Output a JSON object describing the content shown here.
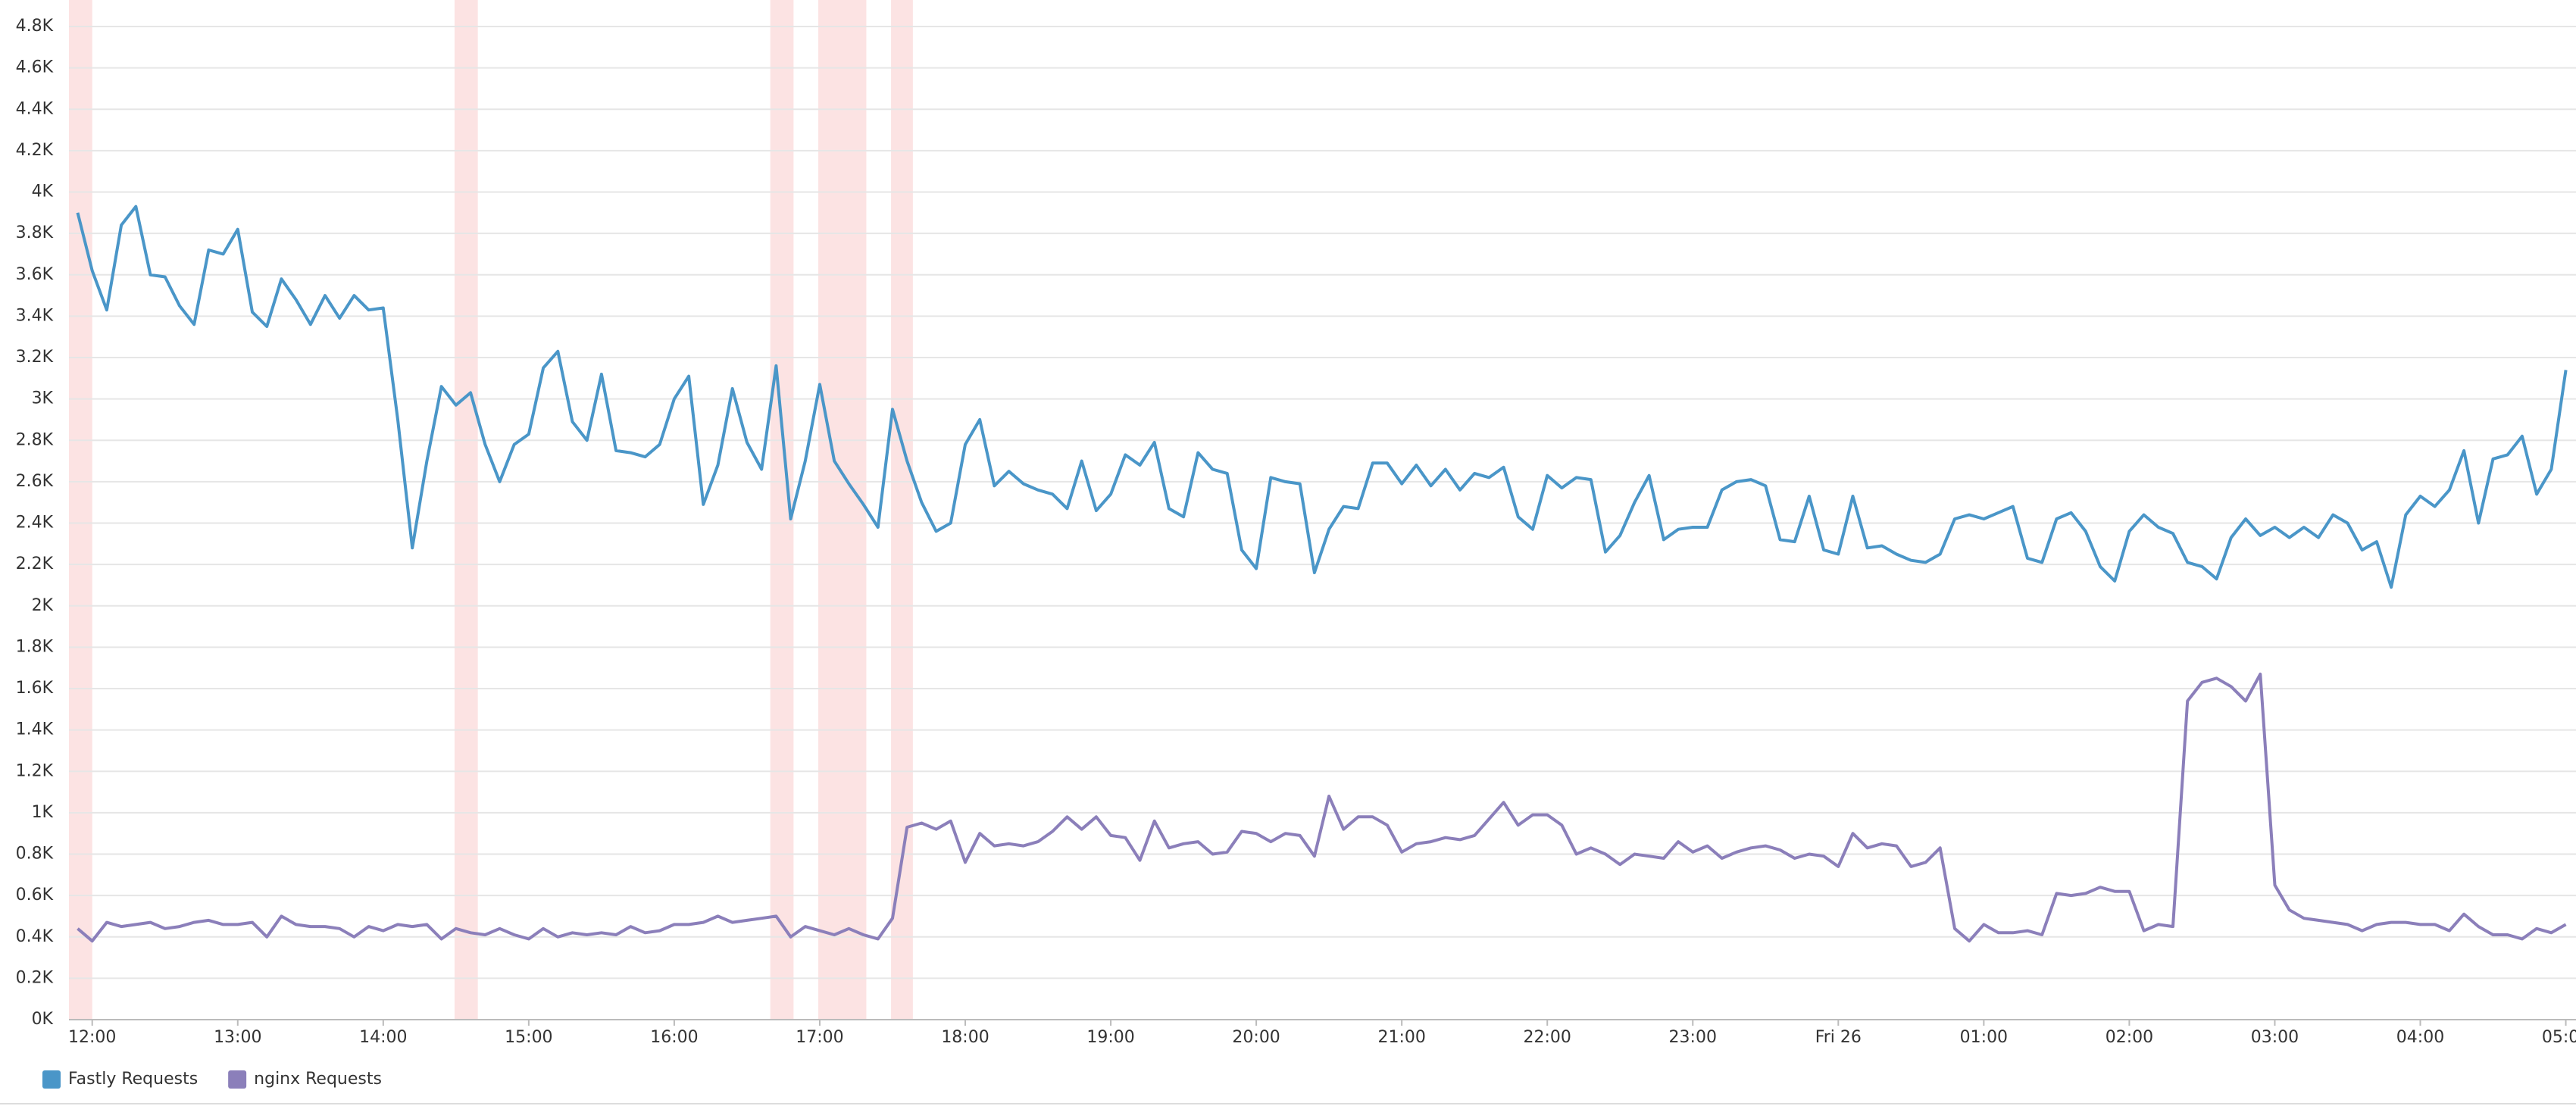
{
  "chart_data": {
    "type": "line",
    "x": [
      11.9,
      12,
      12.1,
      12.2,
      12.3,
      12.4,
      12.5,
      12.6,
      12.7,
      12.8,
      12.9,
      13,
      13.1,
      13.2,
      13.3,
      13.4,
      13.5,
      13.6,
      13.7,
      13.8,
      13.9,
      14,
      14.1,
      14.2,
      14.3,
      14.4,
      14.5,
      14.6,
      14.7,
      14.8,
      14.9,
      15,
      15.1,
      15.2,
      15.3,
      15.4,
      15.5,
      15.6,
      15.7,
      15.8,
      15.9,
      16,
      16.1,
      16.2,
      16.3,
      16.4,
      16.5,
      16.6,
      16.7,
      16.8,
      16.9,
      17,
      17.1,
      17.2,
      17.3,
      17.4,
      17.5,
      17.6,
      17.7,
      17.8,
      17.9,
      18,
      18.1,
      18.2,
      18.3,
      18.4,
      18.5,
      18.6,
      18.7,
      18.8,
      18.9,
      19,
      19.1,
      19.2,
      19.3,
      19.4,
      19.5,
      19.6,
      19.7,
      19.8,
      19.9,
      20,
      20.1,
      20.2,
      20.3,
      20.4,
      20.5,
      20.6,
      20.7,
      20.8,
      20.9,
      21,
      21.1,
      21.2,
      21.3,
      21.4,
      21.5,
      21.6,
      21.7,
      21.8,
      21.9,
      22,
      22.1,
      22.2,
      22.3,
      22.4,
      22.5,
      22.6,
      22.7,
      22.8,
      22.9,
      23,
      23.1,
      23.2,
      23.3,
      23.4,
      23.5,
      23.6,
      23.7,
      23.8,
      23.9,
      24,
      24.1,
      24.2,
      24.3,
      24.4,
      24.5,
      24.6,
      24.7,
      24.8,
      24.9,
      25,
      25.1,
      25.2,
      25.3,
      25.4,
      25.5,
      25.6,
      25.7,
      25.8,
      25.9,
      26,
      26.1,
      26.2,
      26.3,
      26.4,
      26.5,
      26.6,
      26.7,
      26.8,
      26.9,
      27,
      27.1,
      27.2,
      27.3,
      27.4,
      27.5,
      27.6,
      27.7,
      27.8,
      27.9,
      28,
      28.1,
      28.2,
      28.3,
      28.4,
      28.5,
      28.6,
      28.7,
      28.8,
      28.9,
      29
    ],
    "series": [
      {
        "name": "Fastly Requests",
        "color": "#4a96c8",
        "values": [
          3900,
          3620,
          3430,
          3840,
          3930,
          3600,
          3590,
          3450,
          3360,
          3720,
          3700,
          3820,
          3420,
          3350,
          3580,
          3480,
          3360,
          3500,
          3390,
          3500,
          3430,
          3440,
          2900,
          2280,
          2700,
          3060,
          2970,
          3030,
          2780,
          2600,
          2780,
          2830,
          3150,
          3230,
          2890,
          2800,
          3120,
          2750,
          2740,
          2720,
          2780,
          3000,
          3110,
          2490,
          2680,
          3050,
          2790,
          2660,
          3160,
          2420,
          2700,
          3070,
          2700,
          2590,
          2490,
          2380,
          2950,
          2700,
          2500,
          2360,
          2400,
          2780,
          2900,
          2580,
          2650,
          2590,
          2560,
          2540,
          2470,
          2700,
          2460,
          2540,
          2730,
          2680,
          2790,
          2470,
          2430,
          2740,
          2660,
          2640,
          2270,
          2180,
          2620,
          2600,
          2590,
          2160,
          2370,
          2480,
          2470,
          2690,
          2690,
          2590,
          2680,
          2580,
          2660,
          2560,
          2640,
          2620,
          2670,
          2430,
          2370,
          2630,
          2570,
          2620,
          2610,
          2260,
          2340,
          2500,
          2630,
          2320,
          2370,
          2380,
          2380,
          2560,
          2600,
          2610,
          2580,
          2320,
          2310,
          2530,
          2270,
          2250,
          2530,
          2280,
          2290,
          2250,
          2220,
          2210,
          2250,
          2420,
          2440,
          2420,
          2450,
          2480,
          2230,
          2210,
          2420,
          2450,
          2360,
          2190,
          2120,
          2360,
          2440,
          2380,
          2350,
          2210,
          2190,
          2130,
          2330,
          2420,
          2340,
          2380,
          2330,
          2380,
          2330,
          2440,
          2400,
          2270,
          2310,
          2090,
          2440,
          2530,
          2480,
          2560,
          2750,
          2400,
          2710,
          2730,
          2820,
          2540,
          2660,
          3140
        ]
      },
      {
        "name": "nginx Requests",
        "color": "#8b7fba",
        "values": [
          440,
          380,
          470,
          450,
          460,
          470,
          440,
          450,
          470,
          480,
          460,
          460,
          470,
          400,
          500,
          460,
          450,
          450,
          440,
          400,
          450,
          430,
          460,
          450,
          460,
          390,
          440,
          420,
          410,
          440,
          410,
          390,
          440,
          400,
          420,
          410,
          420,
          410,
          450,
          420,
          430,
          460,
          460,
          470,
          500,
          470,
          480,
          490,
          500,
          400,
          450,
          430,
          410,
          440,
          410,
          390,
          490,
          930,
          950,
          920,
          960,
          760,
          900,
          840,
          850,
          840,
          860,
          910,
          980,
          920,
          980,
          890,
          880,
          770,
          960,
          830,
          850,
          860,
          800,
          810,
          910,
          900,
          860,
          900,
          890,
          790,
          1080,
          920,
          980,
          980,
          940,
          810,
          850,
          860,
          880,
          870,
          890,
          970,
          1050,
          940,
          990,
          990,
          940,
          800,
          830,
          800,
          750,
          800,
          790,
          780,
          860,
          810,
          840,
          780,
          810,
          830,
          840,
          820,
          780,
          800,
          790,
          740,
          900,
          830,
          850,
          840,
          740,
          760,
          830,
          440,
          380,
          460,
          420,
          420,
          430,
          410,
          610,
          600,
          610,
          640,
          620,
          620,
          430,
          460,
          450,
          1540,
          1630,
          1650,
          1610,
          1540,
          1670,
          650,
          530,
          490,
          480,
          470,
          460,
          430,
          460,
          470,
          470,
          460,
          460,
          430,
          510,
          450,
          410,
          410,
          390,
          440,
          420,
          460
        ]
      }
    ],
    "xlim": [
      11.84,
      29.07
    ],
    "xticks": [
      {
        "value": 12,
        "label": "12:00"
      },
      {
        "value": 13,
        "label": "13:00"
      },
      {
        "value": 14,
        "label": "14:00"
      },
      {
        "value": 15,
        "label": "15:00"
      },
      {
        "value": 16,
        "label": "16:00"
      },
      {
        "value": 17,
        "label": "17:00"
      },
      {
        "value": 18,
        "label": "18:00"
      },
      {
        "value": 19,
        "label": "19:00"
      },
      {
        "value": 20,
        "label": "20:00"
      },
      {
        "value": 21,
        "label": "21:00"
      },
      {
        "value": 22,
        "label": "22:00"
      },
      {
        "value": 23,
        "label": "23:00"
      },
      {
        "value": 24,
        "label": "Fri 26"
      },
      {
        "value": 25,
        "label": "01:00"
      },
      {
        "value": 26,
        "label": "02:00"
      },
      {
        "value": 27,
        "label": "03:00"
      },
      {
        "value": 28,
        "label": "04:00"
      },
      {
        "value": 29,
        "label": "05:00"
      }
    ],
    "ylim": [
      0,
      4800
    ],
    "yticks": [
      {
        "value": 0,
        "label": "0K"
      },
      {
        "value": 200,
        "label": "0.2K"
      },
      {
        "value": 400,
        "label": "0.4K"
      },
      {
        "value": 600,
        "label": "0.6K"
      },
      {
        "value": 800,
        "label": "0.8K"
      },
      {
        "value": 1000,
        "label": "1K"
      },
      {
        "value": 1200,
        "label": "1.2K"
      },
      {
        "value": 1400,
        "label": "1.4K"
      },
      {
        "value": 1600,
        "label": "1.6K"
      },
      {
        "value": 1800,
        "label": "1.8K"
      },
      {
        "value": 2000,
        "label": "2K"
      },
      {
        "value": 2200,
        "label": "2.2K"
      },
      {
        "value": 2400,
        "label": "2.4K"
      },
      {
        "value": 2600,
        "label": "2.6K"
      },
      {
        "value": 2800,
        "label": "2.8K"
      },
      {
        "value": 3000,
        "label": "3K"
      },
      {
        "value": 3200,
        "label": "3.2K"
      },
      {
        "value": 3400,
        "label": "3.4K"
      },
      {
        "value": 3600,
        "label": "3.6K"
      },
      {
        "value": 3800,
        "label": "3.8K"
      },
      {
        "value": 4000,
        "label": "4K"
      },
      {
        "value": 4200,
        "label": "4.2K"
      },
      {
        "value": 4400,
        "label": "4.4K"
      },
      {
        "value": 4600,
        "label": "4.6K"
      },
      {
        "value": 4800,
        "label": "4.8K"
      }
    ],
    "highlight_ranges": [
      [
        11.84,
        12.0
      ],
      [
        14.49,
        14.65
      ],
      [
        16.66,
        16.82
      ],
      [
        16.99,
        17.32
      ],
      [
        17.49,
        17.64
      ]
    ],
    "highlight_color": "#fce3e3",
    "grid": true,
    "legend": "bottom-left"
  }
}
